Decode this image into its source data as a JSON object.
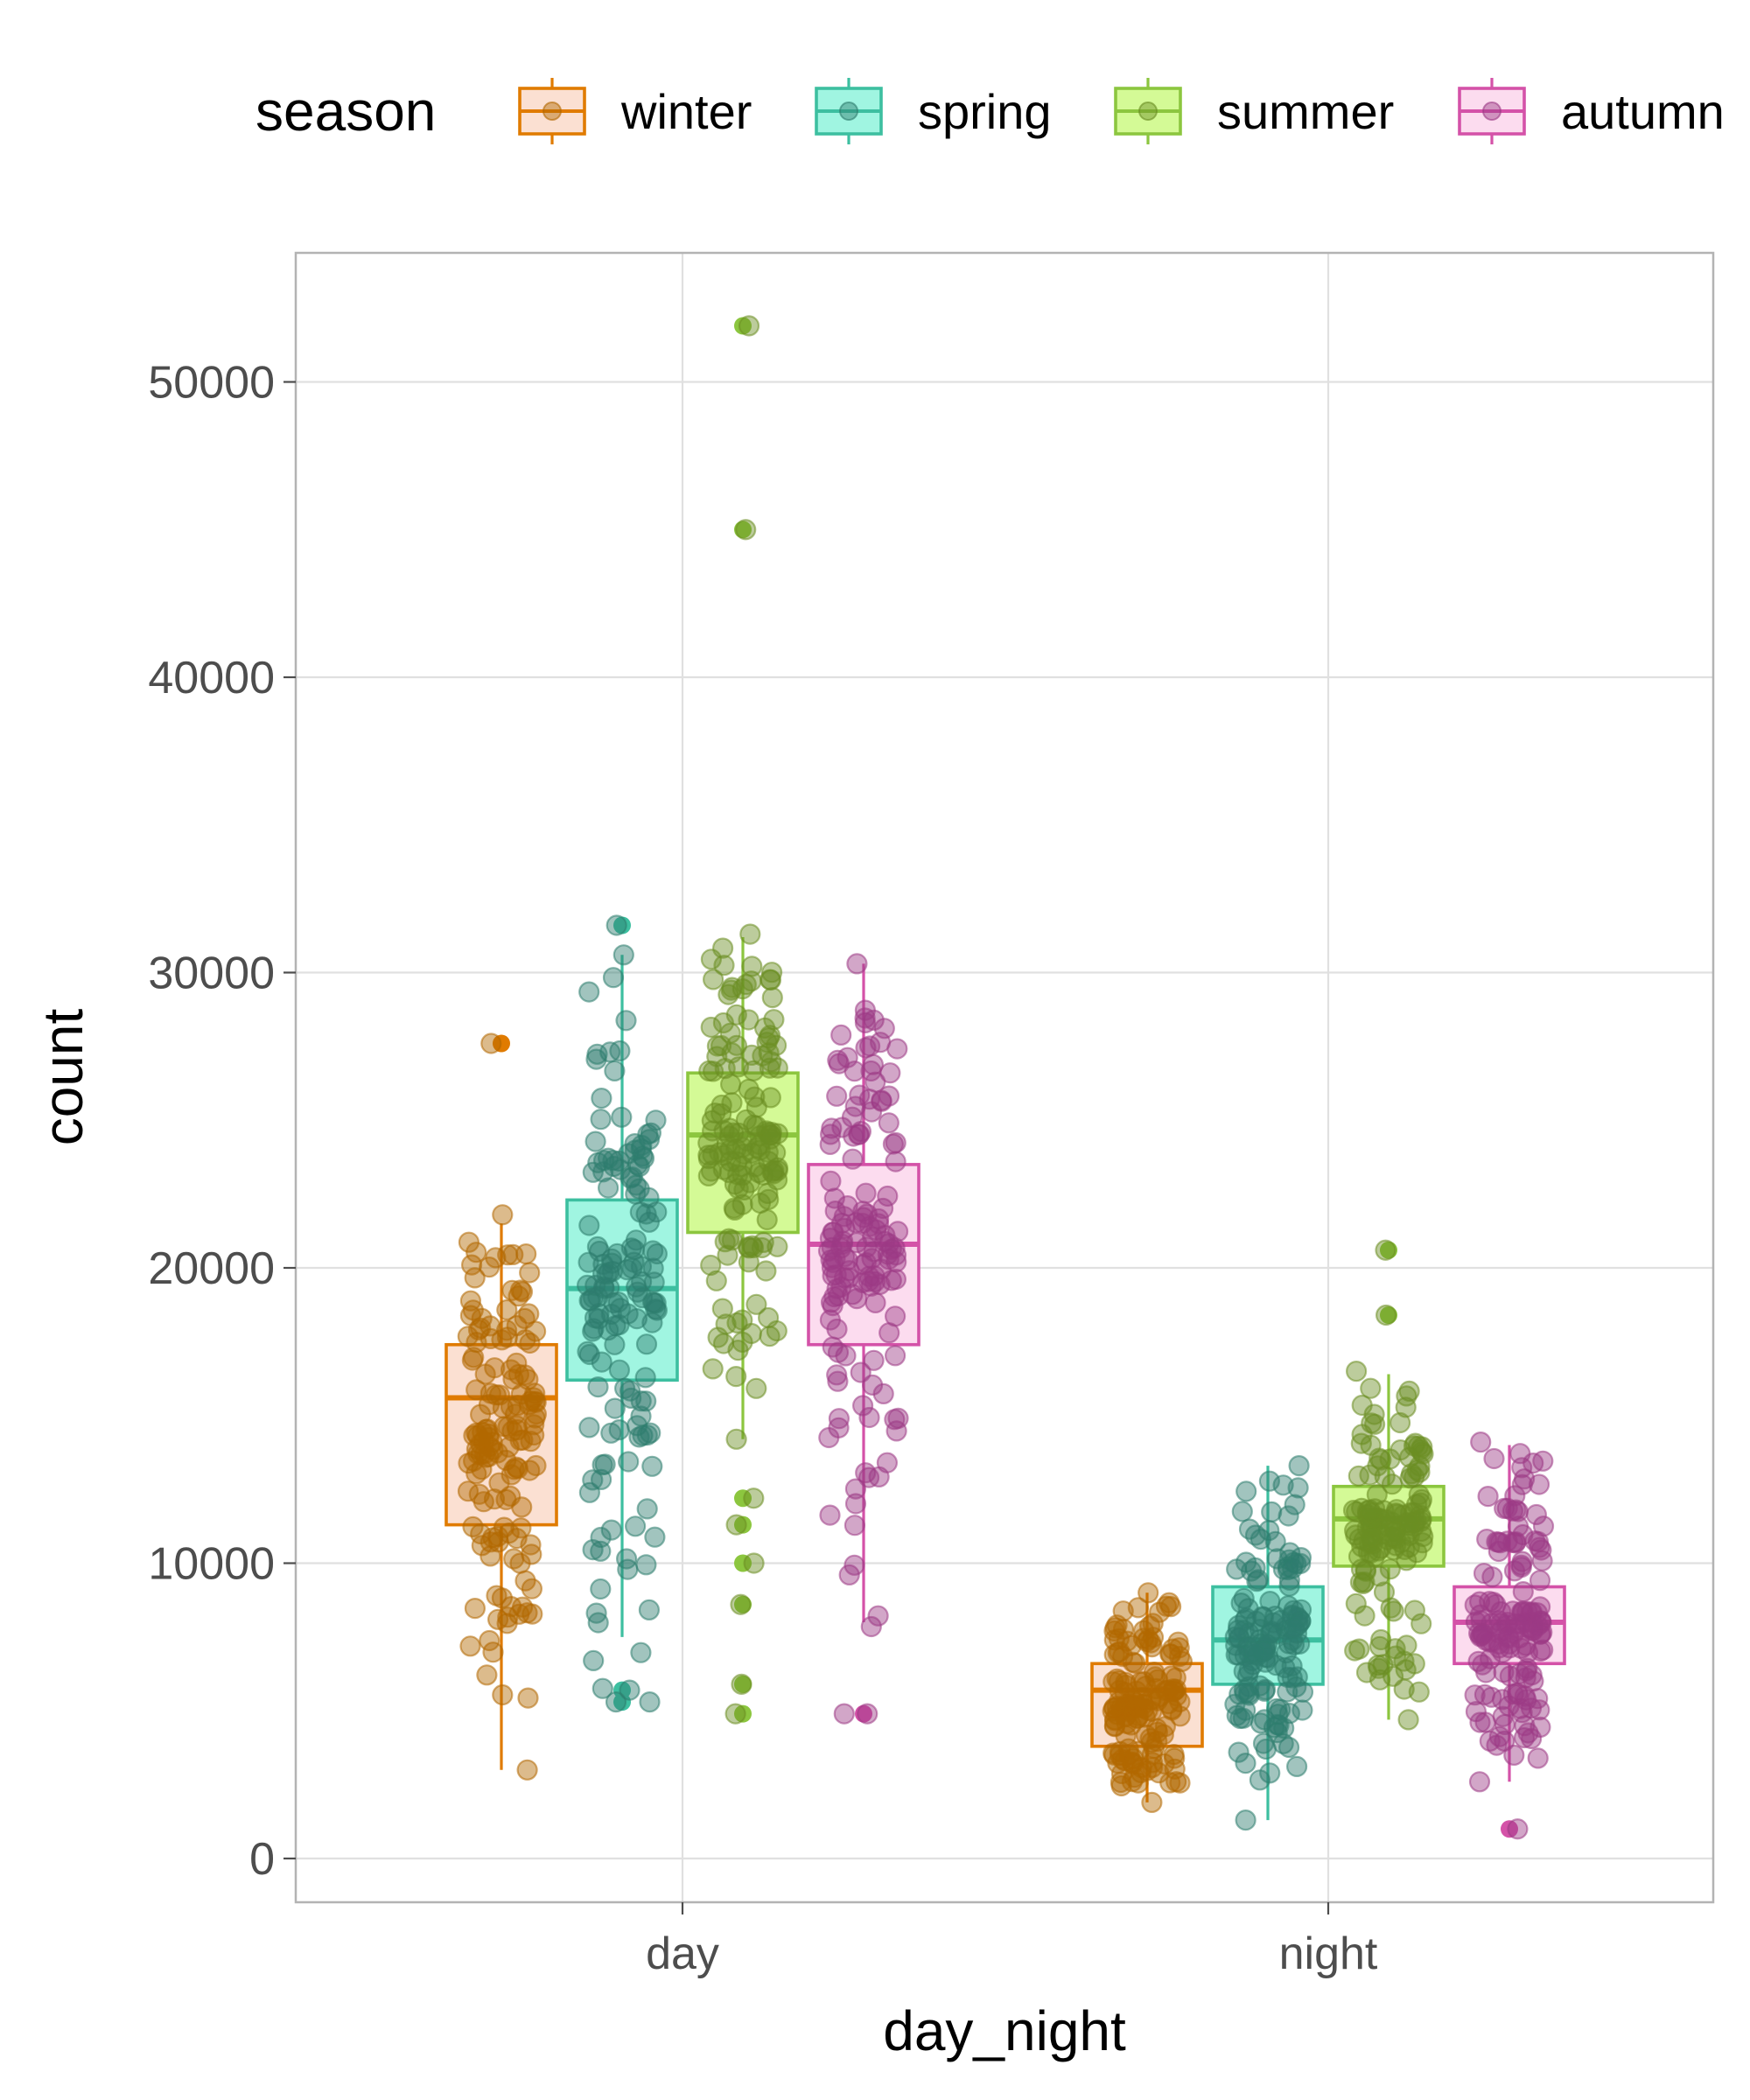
{
  "chart_data": {
    "type": "boxplot",
    "xlabel": "day_night",
    "ylabel": "count",
    "categories": [
      "day",
      "night"
    ],
    "ylim": [
      -1500,
      54000
    ],
    "yticks": [
      0,
      10000,
      20000,
      30000,
      40000,
      50000
    ],
    "grid": true,
    "legend": {
      "title": "season",
      "position": "top"
    },
    "series": [
      {
        "name": "winter",
        "stroke": "#E07B00",
        "fill": "#FBE0D2",
        "points": "#B26800",
        "boxes": [
          {
            "category": "day",
            "q1": 11300,
            "median": 15600,
            "q3": 17400,
            "whisker_low": 3000,
            "whisker_high": 21500,
            "outliers": [
              27600
            ],
            "n": 150,
            "spread_low": 3000,
            "spread_high": 21800
          },
          {
            "category": "night",
            "q1": 3800,
            "median": 5700,
            "q3": 6600,
            "whisker_low": 1900,
            "whisker_high": 9000,
            "outliers": [],
            "n": 150,
            "spread_low": 1900,
            "spread_high": 9000
          }
        ]
      },
      {
        "name": "spring",
        "stroke": "#3DBFA0",
        "fill": "#A0F5E1",
        "points": "#2E7D6E",
        "boxes": [
          {
            "category": "day",
            "q1": 16200,
            "median": 19300,
            "q3": 22300,
            "whisker_low": 7500,
            "whisker_high": 30600,
            "outliers": [
              31600,
              5700,
              5300
            ],
            "n": 150,
            "spread_low": 5300,
            "spread_high": 30600
          },
          {
            "category": "night",
            "q1": 5900,
            "median": 7400,
            "q3": 9200,
            "whisker_low": 1300,
            "whisker_high": 13300,
            "outliers": [],
            "n": 150,
            "spread_low": 1300,
            "spread_high": 13300
          }
        ]
      },
      {
        "name": "summer",
        "stroke": "#8CC63F",
        "fill": "#D4FA96",
        "points": "#6B8E23",
        "boxes": [
          {
            "category": "day",
            "q1": 21200,
            "median": 24500,
            "q3": 26600,
            "whisker_low": 14200,
            "whisker_high": 31200,
            "outliers": [
              51900,
              45000,
              12200,
              11300,
              10000,
              8600,
              5900,
              4900
            ],
            "n": 150,
            "spread_low": 14200,
            "spread_high": 31300
          },
          {
            "category": "night",
            "q1": 9900,
            "median": 11500,
            "q3": 12600,
            "whisker_low": 4700,
            "whisker_high": 16400,
            "outliers": [
              20600,
              18400
            ],
            "n": 150,
            "spread_low": 4700,
            "spread_high": 16500
          }
        ]
      },
      {
        "name": "autumn",
        "stroke": "#D452A8",
        "fill": "#FCDCEF",
        "points": "#9C3A85",
        "boxes": [
          {
            "category": "day",
            "q1": 17400,
            "median": 20800,
            "q3": 23500,
            "whisker_low": 8000,
            "whisker_high": 30300,
            "outliers": [
              4900
            ],
            "n": 150,
            "spread_low": 4900,
            "spread_high": 30300
          },
          {
            "category": "night",
            "q1": 6600,
            "median": 8000,
            "q3": 9200,
            "whisker_low": 2600,
            "whisker_high": 14000,
            "outliers": [
              1000
            ],
            "n": 150,
            "spread_low": 2600,
            "spread_high": 14100
          }
        ]
      }
    ]
  }
}
